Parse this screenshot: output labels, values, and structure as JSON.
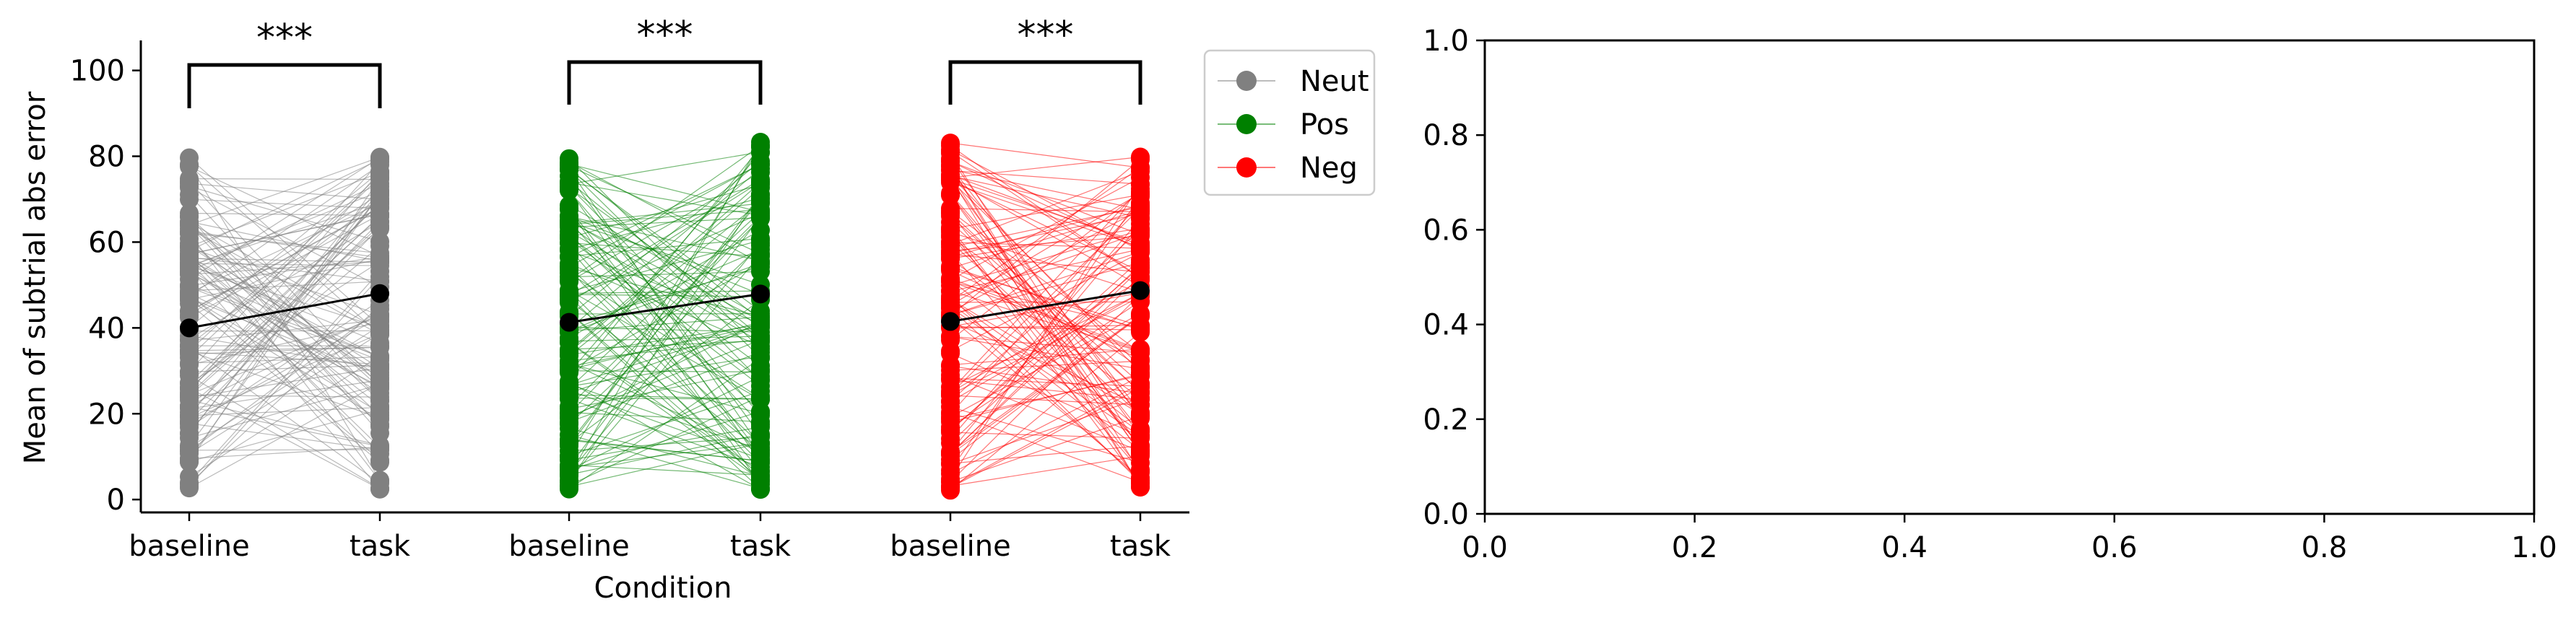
{
  "chart_data": [
    {
      "type": "line",
      "title": "",
      "xlabel": "Condition",
      "ylabel": "Mean of subtrial abs error",
      "ylim": [
        -3,
        107
      ],
      "yticks": [
        0,
        20,
        40,
        60,
        80,
        100
      ],
      "tick_labels": [
        "baseline",
        "task",
        "baseline",
        "task",
        "baseline",
        "task"
      ],
      "legend": {
        "placement": "outside upper right",
        "entries": [
          {
            "label": "Neut",
            "color": "#808080"
          },
          {
            "label": "Pos",
            "color": "#008000"
          },
          {
            "label": "Neg",
            "color": "#ff0000"
          }
        ]
      },
      "significance": [
        "***",
        "***",
        "***"
      ],
      "groups": [
        {
          "name": "Neut",
          "color": "#808080",
          "baseline_mean": 40,
          "task_mean": 48
        },
        {
          "name": "Pos",
          "color": "#008000",
          "baseline_mean": 41.3,
          "task_mean": 47.9
        },
        {
          "name": "Neg",
          "color": "#ff0000",
          "baseline_mean": 41.5,
          "task_mean": 48.7
        }
      ],
      "individual_lines": "many per-subject baseline→task lines spanning ~2–85 (values not readable individually)"
    },
    {
      "type": "line",
      "title": "",
      "xlim": [
        0.0,
        1.0
      ],
      "ylim": [
        0.0,
        1.0
      ],
      "xticks": [
        "0.0",
        "0.2",
        "0.4",
        "0.6",
        "0.8",
        "1.0"
      ],
      "yticks": [
        "0.0",
        "0.2",
        "0.4",
        "0.6",
        "0.8",
        "1.0"
      ],
      "series": []
    }
  ]
}
